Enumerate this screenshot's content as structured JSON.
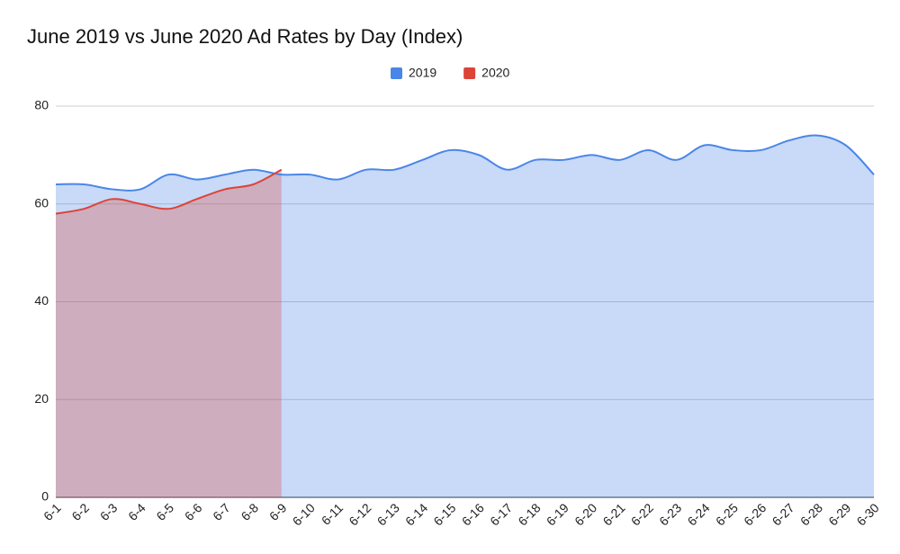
{
  "chart_data": {
    "type": "area",
    "title": "June 2019 vs June 2020 Ad Rates by Day (Index)",
    "categories": [
      "6-1",
      "6-2",
      "6-3",
      "6-4",
      "6-5",
      "6-6",
      "6-7",
      "6-8",
      "6-9",
      "6-10",
      "6-11",
      "6-12",
      "6-13",
      "6-14",
      "6-15",
      "6-16",
      "6-17",
      "6-18",
      "6-19",
      "6-20",
      "6-21",
      "6-22",
      "6-23",
      "6-24",
      "6-25",
      "6-26",
      "6-27",
      "6-28",
      "6-29",
      "6-30"
    ],
    "series": [
      {
        "name": "2019",
        "color": "#4a86e8",
        "values": [
          64,
          64,
          63,
          63,
          66,
          65,
          66,
          67,
          66,
          66,
          65,
          67,
          67,
          69,
          71,
          70,
          67,
          69,
          69,
          70,
          69,
          71,
          69,
          72,
          71,
          71,
          73,
          74,
          72,
          66
        ]
      },
      {
        "name": "2020",
        "color": "#dc4437",
        "values": [
          58,
          59,
          61,
          60,
          59,
          61,
          63,
          64,
          67,
          null,
          null,
          null,
          null,
          null,
          null,
          null,
          null,
          null,
          null,
          null,
          null,
          null,
          null,
          null,
          null,
          null,
          null,
          null,
          null,
          null
        ]
      }
    ],
    "ylim": [
      0,
      80
    ],
    "yticks": [
      0,
      20,
      40,
      60,
      80
    ],
    "grid": true,
    "legend": "top"
  }
}
